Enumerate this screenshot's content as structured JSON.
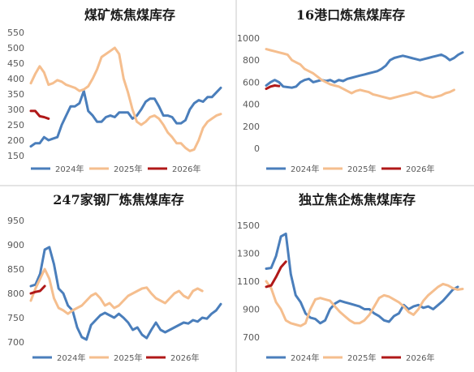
{
  "colors": {
    "2024": "#4a7ebb",
    "2025": "#f5be8e",
    "2026": "#b01818"
  },
  "legend": [
    "2024年",
    "2025年",
    "2026年"
  ],
  "chart_data": [
    {
      "type": "line",
      "title": "煤矿炼焦煤库存",
      "ylim": [
        150,
        550
      ],
      "yticks": [
        "150",
        "200",
        "250",
        "300",
        "350",
        "400",
        "450",
        "500",
        "550"
      ],
      "series": [
        {
          "name": "2024年",
          "values": [
            180,
            190,
            190,
            210,
            200,
            205,
            210,
            250,
            280,
            310,
            310,
            320,
            360,
            295,
            280,
            260,
            260,
            275,
            280,
            275,
            290,
            290,
            290,
            270,
            280,
            300,
            325,
            335,
            335,
            310,
            280,
            280,
            275,
            255,
            255,
            265,
            300,
            320,
            330,
            325,
            340,
            340,
            355,
            370
          ]
        },
        {
          "name": "2025年",
          "values": [
            385,
            415,
            440,
            420,
            380,
            385,
            395,
            390,
            380,
            375,
            370,
            360,
            365,
            375,
            400,
            430,
            470,
            480,
            490,
            500,
            480,
            400,
            355,
            300,
            260,
            250,
            260,
            275,
            280,
            270,
            250,
            225,
            210,
            190,
            190,
            175,
            165,
            170,
            200,
            240,
            260,
            270,
            280,
            285
          ]
        },
        {
          "name": "2026年",
          "values": [
            295,
            295,
            278,
            275,
            270
          ]
        }
      ]
    },
    {
      "type": "line",
      "title": "16港口炼焦煤库存",
      "ylim": [
        0,
        1000
      ],
      "yticks": [
        "0",
        "200",
        "400",
        "600",
        "800",
        "1000"
      ],
      "series": [
        {
          "name": "2024年",
          "values": [
            570,
            600,
            620,
            600,
            560,
            555,
            550,
            560,
            600,
            620,
            630,
            600,
            610,
            620,
            610,
            620,
            600,
            620,
            610,
            630,
            640,
            650,
            660,
            670,
            680,
            690,
            700,
            720,
            750,
            800,
            820,
            830,
            840,
            830,
            820,
            810,
            800,
            810,
            820,
            830,
            840,
            850,
            830,
            800,
            820,
            850,
            870
          ]
        },
        {
          "name": "2025年",
          "values": [
            900,
            890,
            880,
            870,
            860,
            850,
            800,
            780,
            760,
            720,
            700,
            680,
            650,
            620,
            600,
            580,
            570,
            560,
            540,
            520,
            500,
            520,
            530,
            520,
            510,
            490,
            480,
            470,
            460,
            450,
            460,
            470,
            480,
            490,
            500,
            510,
            500,
            480,
            470,
            460,
            470,
            480,
            500,
            510,
            530
          ]
        },
        {
          "name": "2026年",
          "values": [
            540,
            560,
            570,
            565
          ]
        }
      ]
    },
    {
      "type": "line",
      "title": "247家钢厂炼焦煤库存",
      "ylim": [
        700,
        950
      ],
      "yticks": [
        "700",
        "750",
        "800",
        "850",
        "900",
        "950"
      ],
      "series": [
        {
          "name": "2024年",
          "values": [
            815,
            818,
            840,
            890,
            895,
            860,
            810,
            800,
            775,
            765,
            730,
            710,
            705,
            735,
            745,
            755,
            760,
            755,
            750,
            758,
            750,
            740,
            725,
            730,
            715,
            708,
            725,
            740,
            725,
            720,
            725,
            730,
            735,
            740,
            738,
            745,
            742,
            750,
            748,
            758,
            765,
            778
          ]
        },
        {
          "name": "2025年",
          "values": [
            785,
            810,
            830,
            850,
            830,
            790,
            770,
            765,
            758,
            765,
            770,
            775,
            785,
            795,
            800,
            790,
            775,
            780,
            770,
            775,
            785,
            795,
            800,
            805,
            810,
            812,
            800,
            790,
            785,
            780,
            790,
            800,
            805,
            795,
            790,
            805,
            810,
            805
          ]
        },
        {
          "name": "2026年",
          "values": [
            800,
            803,
            805,
            815
          ]
        }
      ]
    },
    {
      "type": "line",
      "title": "独立焦企炼焦煤库存",
      "ylim": [
        700,
        1500
      ],
      "yticks": [
        "700",
        "900",
        "1100",
        "1300",
        "1500"
      ],
      "series": [
        {
          "name": "2024年",
          "values": [
            1190,
            1195,
            1280,
            1420,
            1440,
            1150,
            1000,
            950,
            870,
            840,
            830,
            800,
            820,
            900,
            940,
            960,
            950,
            940,
            930,
            920,
            900,
            900,
            870,
            850,
            820,
            810,
            850,
            870,
            930,
            900,
            920,
            930,
            910,
            920,
            900,
            930,
            960,
            1000,
            1040,
            1060
          ]
        },
        {
          "name": "2025年",
          "values": [
            1100,
            1050,
            950,
            900,
            820,
            800,
            790,
            780,
            800,
            900,
            970,
            980,
            970,
            960,
            920,
            880,
            850,
            820,
            800,
            800,
            820,
            860,
            920,
            980,
            1000,
            990,
            970,
            950,
            920,
            880,
            860,
            900,
            960,
            1000,
            1030,
            1060,
            1080,
            1070,
            1050,
            1040,
            1045
          ]
        },
        {
          "name": "2026年",
          "values": [
            1060,
            1070,
            1130,
            1200,
            1240
          ]
        }
      ]
    }
  ]
}
